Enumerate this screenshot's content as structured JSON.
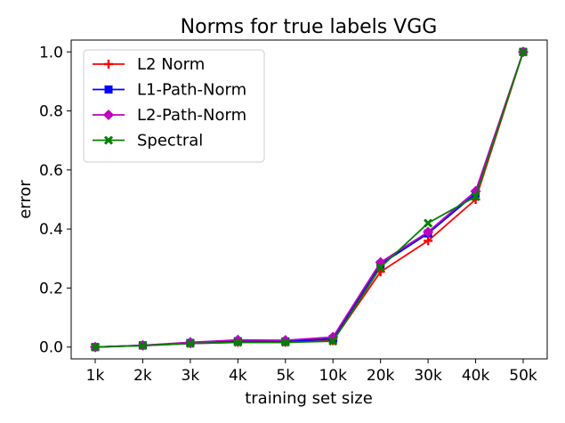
{
  "chart_data": {
    "type": "line",
    "title": "Norms for true labels VGG",
    "xlabel": "training set size",
    "ylabel": "error",
    "categories": [
      "1k",
      "2k",
      "3k",
      "4k",
      "5k",
      "10k",
      "20k",
      "30k",
      "40k",
      "50k"
    ],
    "ylim": [
      -0.04,
      1.04
    ],
    "yticks": [
      0.0,
      0.2,
      0.4,
      0.6,
      0.8,
      1.0
    ],
    "ytick_labels": [
      "0.0",
      "0.2",
      "0.4",
      "0.6",
      "0.8",
      "1.0"
    ],
    "grid": false,
    "legend_position": "upper-left",
    "series": [
      {
        "name": "L2 Norm",
        "color": "#ff0000",
        "marker": "plus",
        "values": [
          0.0,
          0.005,
          0.012,
          0.016,
          0.016,
          0.022,
          0.255,
          0.36,
          0.5,
          1.0
        ]
      },
      {
        "name": "L1-Path-Norm",
        "color": "#0000ff",
        "marker": "square",
        "values": [
          0.0,
          0.006,
          0.014,
          0.02,
          0.019,
          0.028,
          0.28,
          0.385,
          0.52,
          1.0
        ]
      },
      {
        "name": "L2-Path-Norm",
        "color": "#bf00bf",
        "marker": "diamond",
        "values": [
          0.0,
          0.006,
          0.016,
          0.024,
          0.023,
          0.034,
          0.287,
          0.39,
          0.528,
          1.0
        ]
      },
      {
        "name": "Spectral",
        "color": "#008000",
        "marker": "x",
        "values": [
          0.0,
          0.005,
          0.012,
          0.016,
          0.016,
          0.02,
          0.27,
          0.42,
          0.51,
          1.0
        ]
      }
    ]
  }
}
